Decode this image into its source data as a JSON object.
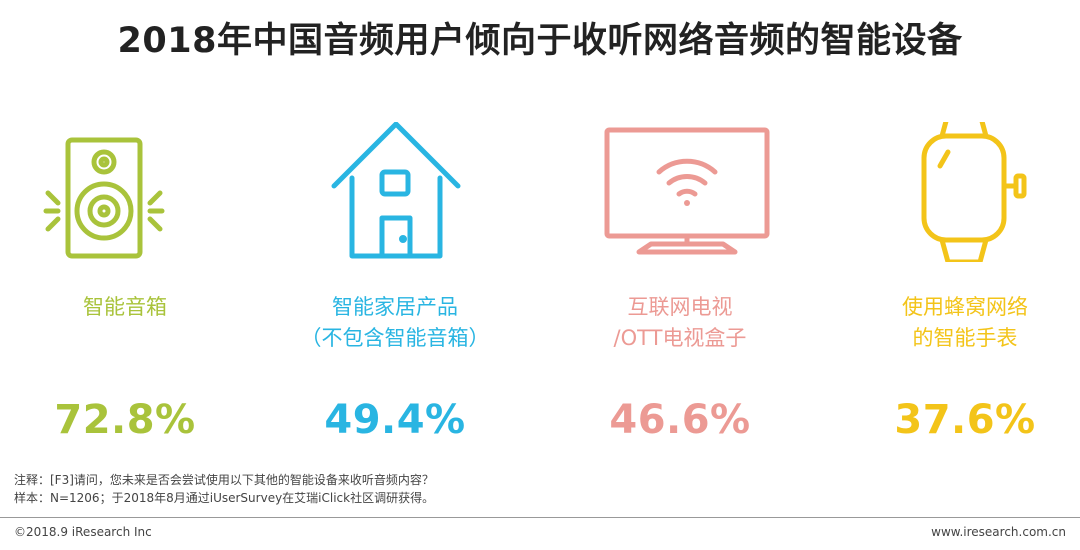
{
  "title": "2018年中国音频用户倾向于收听网络音频的智能设备",
  "chart_data": {
    "type": "table",
    "title": "2018年中国音频用户倾向于收听网络音频的智能设备",
    "categories": [
      {
        "label_lines": [
          "智能音箱"
        ],
        "value": "72.8%",
        "color": "#A9C33B",
        "icon": "speaker-icon"
      },
      {
        "label_lines": [
          "智能家居产品",
          "（不包含智能音箱）"
        ],
        "value": "49.4%",
        "color": "#29B5E2",
        "icon": "house-icon"
      },
      {
        "label_lines": [
          "互联网电视",
          "/OTT电视盒子"
        ],
        "value": "46.6%",
        "color": "#EC9A94",
        "icon": "tv-wifi-icon"
      },
      {
        "label_lines": [
          "使用蜂窝网络",
          "的智能手表"
        ],
        "value": "37.6%",
        "color": "#F3C419",
        "icon": "smartwatch-icon"
      }
    ]
  },
  "notes": {
    "line1": "注释：[F3]请问，您未来是否会尝试使用以下其他的智能设备来收听音频内容？",
    "line2": "样本：N=1206；于2018年8月通过iUserSurvey在艾瑞iClick社区调研获得。"
  },
  "footer": {
    "copyright": "©2018.9 iResearch Inc",
    "website": "www.iresearch.com.cn"
  }
}
